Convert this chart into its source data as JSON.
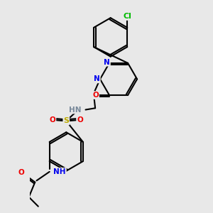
{
  "background_color": "#e8e8e8",
  "bond_color": "#000000",
  "atom_colors": {
    "N": "#0000ee",
    "O": "#ee0000",
    "S": "#bbaa00",
    "Cl": "#00bb00",
    "C": "#000000",
    "H": "#778899"
  },
  "figsize": [
    3.0,
    3.0
  ],
  "dpi": 100
}
